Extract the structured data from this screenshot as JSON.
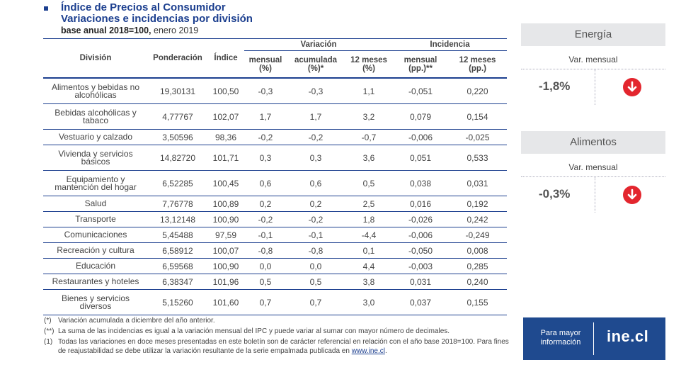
{
  "title": {
    "line1": "Índice de Precios al Consumidor",
    "line2": "Variaciones e incidencias por división",
    "base_bold": "base anual 2018=100,",
    "base_rest": " enero 2019"
  },
  "table": {
    "headers": {
      "division": "División",
      "ponderacion": "Ponderación",
      "indice": "Índice",
      "variacion_group": "Variación",
      "incidencia_group": "Incidencia",
      "var_mensual": "mensual",
      "var_mensual_unit": "(%)",
      "var_acumulada": "acumulada",
      "var_acumulada_unit": "(%)*",
      "var_12m": "12 meses",
      "var_12m_unit": "(%)",
      "inc_mensual": "mensual",
      "inc_mensual_unit": "(pp.)**",
      "inc_12m": "12 meses",
      "inc_12m_unit": "(pp.)"
    },
    "rows": [
      {
        "division": "Alimentos y bebidas no alcohólicas",
        "ponderacion": "19,30131",
        "indice": "100,50",
        "mensual": "-0,3",
        "acumulada": "-0,3",
        "doce": "1,1",
        "inc_mensual": "-0,051",
        "inc_doce": "0,220"
      },
      {
        "division": "Bebidas alcohólicas y tabaco",
        "ponderacion": "4,77767",
        "indice": "102,07",
        "mensual": "1,7",
        "acumulada": "1,7",
        "doce": "3,2",
        "inc_mensual": "0,079",
        "inc_doce": "0,154"
      },
      {
        "division": "Vestuario y calzado",
        "ponderacion": "3,50596",
        "indice": "98,36",
        "mensual": "-0,2",
        "acumulada": "-0,2",
        "doce": "-0,7",
        "inc_mensual": "-0,006",
        "inc_doce": "-0,025"
      },
      {
        "division": "Vivienda y servicios básicos",
        "ponderacion": "14,82720",
        "indice": "101,71",
        "mensual": "0,3",
        "acumulada": "0,3",
        "doce": "3,6",
        "inc_mensual": "0,051",
        "inc_doce": "0,533"
      },
      {
        "division": "Equipamiento y mantención del hogar",
        "ponderacion": "6,52285",
        "indice": "100,45",
        "mensual": "0,6",
        "acumulada": "0,6",
        "doce": "0,5",
        "inc_mensual": "0,038",
        "inc_doce": "0,031"
      },
      {
        "division": "Salud",
        "ponderacion": "7,76778",
        "indice": "100,89",
        "mensual": "0,2",
        "acumulada": "0,2",
        "doce": "2,5",
        "inc_mensual": "0,016",
        "inc_doce": "0,192"
      },
      {
        "division": "Transporte",
        "ponderacion": "13,12148",
        "indice": "100,90",
        "mensual": "-0,2",
        "acumulada": "-0,2",
        "doce": "1,8",
        "inc_mensual": "-0,026",
        "inc_doce": "0,242"
      },
      {
        "division": "Comunicaciones",
        "ponderacion": "5,45488",
        "indice": "97,59",
        "mensual": "-0,1",
        "acumulada": "-0,1",
        "doce": "-4,4",
        "inc_mensual": "-0,006",
        "inc_doce": "-0,249"
      },
      {
        "division": "Recreación y cultura",
        "ponderacion": "6,58912",
        "indice": "100,07",
        "mensual": "-0,8",
        "acumulada": "-0,8",
        "doce": "0,1",
        "inc_mensual": "-0,050",
        "inc_doce": "0,008"
      },
      {
        "division": "Educación",
        "ponderacion": "6,59568",
        "indice": "100,90",
        "mensual": "0,0",
        "acumulada": "0,0",
        "doce": "4,4",
        "inc_mensual": "-0,003",
        "inc_doce": "0,285"
      },
      {
        "division": "Restaurantes y hoteles",
        "ponderacion": "6,38347",
        "indice": "101,96",
        "mensual": "0,5",
        "acumulada": "0,5",
        "doce": "3,8",
        "inc_mensual": "0,031",
        "inc_doce": "0,240"
      },
      {
        "division": "Bienes y servicios diversos",
        "ponderacion": "5,15260",
        "indice": "101,60",
        "mensual": "0,7",
        "acumulada": "0,7",
        "doce": "3,0",
        "inc_mensual": "0,037",
        "inc_doce": "0,155"
      }
    ]
  },
  "notes": [
    {
      "key": "(*)",
      "text": "Variación acumulada a diciembre del año anterior."
    },
    {
      "key": "(**)",
      "text": "La suma de las incidencias es igual a la variación mensual del IPC y puede variar al sumar con mayor número de decimales."
    },
    {
      "key": "(1)",
      "text": "Todas las variaciones en doce meses presentadas en este boletín son de carácter referencial en relación con el año base 2018=100. Para fines de reajustabilidad se debe utilizar la variación resultante de la serie empalmada publicada en ",
      "link": "www.ine.cl",
      "end": "."
    }
  ],
  "cards": [
    {
      "title": "Energía",
      "label": "Var. mensual",
      "value": "-1,8%",
      "icon": "down-arrow-icon"
    },
    {
      "title": "Alimentos",
      "label": "Var. mensual",
      "value": "-0,3%",
      "icon": "down-arrow-icon"
    }
  ],
  "footer": {
    "left": "Para mayor información",
    "brand": "ine.cl"
  },
  "colors": {
    "primary": "#1c3f8f",
    "footer_bg": "#1f4a8f",
    "arrow": "#e3262e",
    "card_header": "#e6e7e9"
  }
}
